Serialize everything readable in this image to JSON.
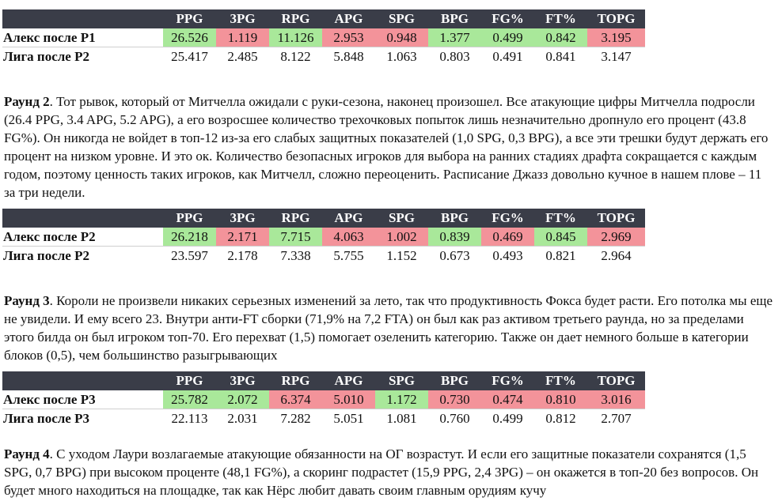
{
  "columns": [
    "PPG",
    "3PG",
    "RPG",
    "APG",
    "SPG",
    "BPG",
    "FG%",
    "FT%",
    "TOPG"
  ],
  "colors": {
    "positive": "#a9e89a",
    "negative": "#f3939a",
    "header_bg": "#3a3d48"
  },
  "tables": [
    {
      "player_label": "Алекс после Р1",
      "player_values": [
        "26.526",
        "1.119",
        "11.126",
        "2.953",
        "0.948",
        "1.377",
        "0.499",
        "0.842",
        "3.195"
      ],
      "player_highlight": [
        "positive",
        "negative",
        "positive",
        "negative",
        "negative",
        "positive",
        "positive",
        "positive",
        "negative"
      ],
      "league_label": "Лига после Р2",
      "league_values": [
        "25.417",
        "2.485",
        "8.122",
        "5.848",
        "1.063",
        "0.803",
        "0.491",
        "0.841",
        "3.147"
      ]
    },
    {
      "player_label": "Алекс после Р2",
      "player_values": [
        "26.218",
        "2.171",
        "7.715",
        "4.063",
        "1.002",
        "0.839",
        "0.469",
        "0.845",
        "2.969"
      ],
      "player_highlight": [
        "positive",
        "negative",
        "positive",
        "negative",
        "negative",
        "positive",
        "negative",
        "positive",
        "negative"
      ],
      "league_label": "Лига после Р2",
      "league_values": [
        "23.597",
        "2.178",
        "7.338",
        "5.755",
        "1.152",
        "0.673",
        "0.493",
        "0.821",
        "2.964"
      ]
    },
    {
      "player_label": "Алекс после Р3",
      "player_values": [
        "25.782",
        "2.072",
        "6.374",
        "5.010",
        "1.172",
        "0.730",
        "0.474",
        "0.810",
        "3.016"
      ],
      "player_highlight": [
        "positive",
        "positive",
        "negative",
        "negative",
        "positive",
        "negative",
        "negative",
        "negative",
        "negative"
      ],
      "league_label": "Лига после Р3",
      "league_values": [
        "22.113",
        "2.031",
        "7.282",
        "5.051",
        "1.081",
        "0.760",
        "0.499",
        "0.812",
        "2.707"
      ]
    }
  ],
  "paragraphs": [
    {
      "label": "Раунд 2",
      "text": ". Тот рывок, который от Митчелла ожидали с руки-сезона, наконец произошел. Все атакующие цифры Митчелла подросли (26.4 PPG, 3.4 APG, 5.2 APG), а его возросшее количество трехочковых попыток лишь незначительно дропнуло его процент (43.8 FG%). Он никогда не войдет в топ-12 из-за его слабых защитных показателей (1,0 SPG, 0,3 BPG), а все эти трешки будут держать его процент на низком уровне. И это ок. Количество безопасных игроков для выбора на ранних стадиях драфта сокращается с каждым годом, поэтому ценность таких игроков, как Митчелл, сложно переоценить. Расписание Джазз довольно кучное в нашем плове – 11 за три недели."
    },
    {
      "label": "Раунд 3",
      "text": ". Короли не произвели никаких серьезных изменений за лето, так что продуктивность Фокса будет расти. Его потолка мы еще не увидели. И ему всего 23. Внутри анти-FT сборки (71,9% на 7,2 FTA) он был как раз активом третьего раунда, но за пределами этого билда он был игроком топ-70.  Его перехват (1,5) помогает озеленить категорию. Также он дает немного больше в категории блоков (0,5), чем большинство разыгрывающих"
    },
    {
      "label": "Раунд 4",
      "text": ". С уходом Лаури возлагаемые атакующие обязанности на ОГ возрастут. И если его защитные показатели сохранятся (1,5 SPG, 0,7 BPG) при высоком проценте (48,1 FG%), а скоринг подрастет (15,9 PPG, 2,4 3PG) – он окажется в топ-20 без вопросов. Он будет много находиться на площадке, так как Нёрс любит давать своим главным орудиям кучу"
    }
  ]
}
